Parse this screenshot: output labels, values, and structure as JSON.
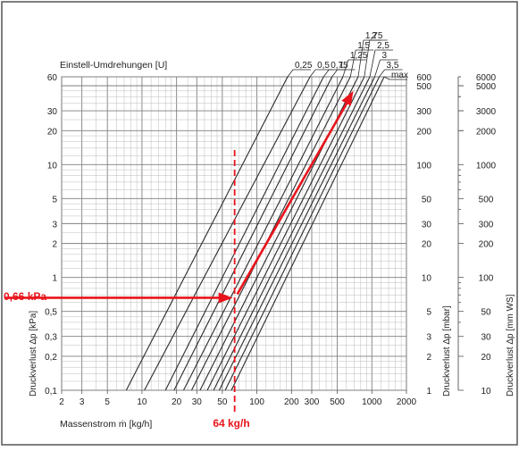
{
  "chart_data": {
    "type": "line",
    "title": "Einstell-Umdrehungen [U]",
    "xlabel": "Massenstrom ṁ [kg/h]",
    "ylabel_left": "Druckverlust Δp [kPa]",
    "ylabel_right1": "Druckverlust Δp [mbar]",
    "ylabel_right2": "Druckverlust Δp [mm WS]",
    "x_scale": "log",
    "y_scale": "log",
    "xlim": [
      2,
      2000
    ],
    "ylim": [
      0.1,
      60
    ],
    "grid": true,
    "x_ticks": [
      {
        "v": 2,
        "label": "2"
      },
      {
        "v": 3,
        "label": "3"
      },
      {
        "v": 5,
        "label": "5"
      },
      {
        "v": 10,
        "label": "10"
      },
      {
        "v": 20,
        "label": "20"
      },
      {
        "v": 30,
        "label": "30"
      },
      {
        "v": 50,
        "label": "50"
      },
      {
        "v": 100,
        "label": "100"
      },
      {
        "v": 200,
        "label": "200"
      },
      {
        "v": 300,
        "label": "300"
      },
      {
        "v": 500,
        "label": "500"
      },
      {
        "v": 1000,
        "label": "1000"
      },
      {
        "v": 2000,
        "label": "2000"
      }
    ],
    "y_ticks_kpa": [
      {
        "v": 0.1,
        "label": "0,1"
      },
      {
        "v": 0.2,
        "label": "0,2"
      },
      {
        "v": 0.3,
        "label": "0,3"
      },
      {
        "v": 0.5,
        "label": "0,5"
      },
      {
        "v": 1,
        "label": "1"
      },
      {
        "v": 2,
        "label": "2"
      },
      {
        "v": 3,
        "label": "3"
      },
      {
        "v": 5,
        "label": "5"
      },
      {
        "v": 10,
        "label": "10"
      },
      {
        "v": 20,
        "label": "20"
      },
      {
        "v": 30,
        "label": "30"
      },
      {
        "v": 60,
        "label": "60"
      }
    ],
    "y_ticks_mbar": [
      {
        "v": 0.1,
        "label": "1"
      },
      {
        "v": 0.2,
        "label": "2"
      },
      {
        "v": 0.3,
        "label": "3"
      },
      {
        "v": 0.5,
        "label": "5"
      },
      {
        "v": 1,
        "label": "10"
      },
      {
        "v": 2,
        "label": "20"
      },
      {
        "v": 3,
        "label": "30"
      },
      {
        "v": 5,
        "label": "50"
      },
      {
        "v": 10,
        "label": "100"
      },
      {
        "v": 20,
        "label": "200"
      },
      {
        "v": 30,
        "label": "300"
      },
      {
        "v": 50,
        "label": "500"
      },
      {
        "v": 60,
        "label": "600"
      }
    ],
    "y_ticks_mmws": [
      {
        "v": 0.1,
        "label": "10"
      },
      {
        "v": 0.2,
        "label": "20"
      },
      {
        "v": 0.3,
        "label": "30"
      },
      {
        "v": 0.5,
        "label": "50"
      },
      {
        "v": 1,
        "label": "100"
      },
      {
        "v": 2,
        "label": "200"
      },
      {
        "v": 3,
        "label": "300"
      },
      {
        "v": 5,
        "label": "500"
      },
      {
        "v": 10,
        "label": "1000"
      },
      {
        "v": 20,
        "label": "2000"
      },
      {
        "v": 30,
        "label": "3000"
      },
      {
        "v": 50,
        "label": "5000"
      },
      {
        "v": 60,
        "label": "6000"
      }
    ],
    "series": [
      {
        "name": "0,25",
        "x": [
          7.3,
          185
        ],
        "y": [
          0.1,
          60
        ]
      },
      {
        "name": "0,5",
        "x": [
          10.5,
          290
        ],
        "y": [
          0.1,
          60
        ]
      },
      {
        "name": "0,75",
        "x": [
          16,
          380
        ],
        "y": [
          0.1,
          60
        ]
      },
      {
        "name": "1",
        "x": [
          19,
          450
        ],
        "y": [
          0.1,
          60
        ]
      },
      {
        "name": "1,25",
        "x": [
          23,
          560
        ],
        "y": [
          0.1,
          60
        ]
      },
      {
        "name": "1,5",
        "x": [
          27,
          650
        ],
        "y": [
          0.1,
          60
        ]
      },
      {
        "name": "1,75",
        "x": [
          32,
          760
        ],
        "y": [
          0.1,
          60
        ]
      },
      {
        "name": "2",
        "x": [
          37,
          860
        ],
        "y": [
          0.1,
          60
        ]
      },
      {
        "name": "2,5",
        "x": [
          42,
          960
        ],
        "y": [
          0.1,
          60
        ]
      },
      {
        "name": "3",
        "x": [
          47,
          1060
        ],
        "y": [
          0.1,
          60
        ]
      },
      {
        "name": "3,5",
        "x": [
          53,
          1160
        ],
        "y": [
          0.1,
          60
        ]
      },
      {
        "name": "max",
        "x": [
          60,
          1280
        ],
        "y": [
          0.1,
          60
        ]
      }
    ],
    "example": {
      "mass_flow": 64,
      "pressure_kpa": 0.66,
      "flow_label": "64 kg/h",
      "pressure_label": "0,66 kPa",
      "color": "#e8141c",
      "arrow_end": {
        "x": 690,
        "y": 45
      }
    }
  },
  "colors": {
    "background": "#ffffff",
    "grid_major": "#7f7f7f",
    "grid_minor": "#b4b4b4",
    "curves": "#2a2a2a",
    "highlight": "#e8141c",
    "frame": "#555555"
  }
}
